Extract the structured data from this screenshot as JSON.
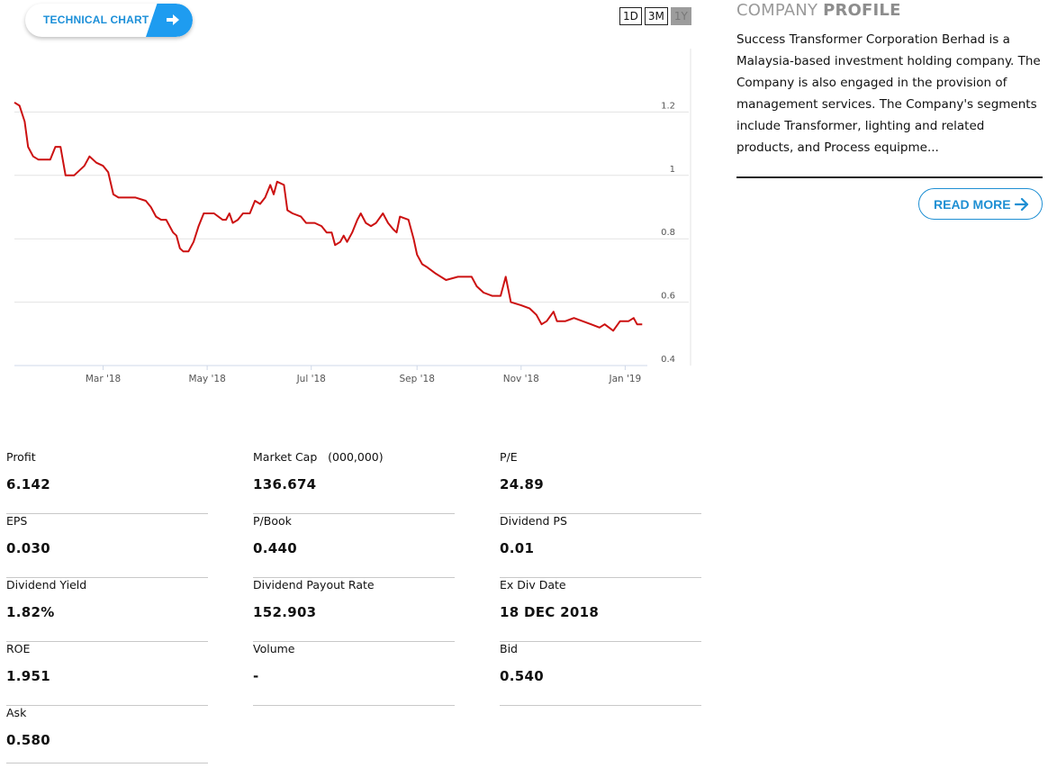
{
  "technical_chart_button": {
    "label": "TECHNICAL CHART",
    "icon": "arrow-right-icon"
  },
  "range_buttons": [
    {
      "label": "1D",
      "active": false
    },
    {
      "label": "3M",
      "active": false
    },
    {
      "label": "1Y",
      "active": true
    }
  ],
  "chart_data": {
    "type": "line",
    "color": "#cc1111",
    "ylim": [
      0.4,
      1.4
    ],
    "yticks": [
      0.4,
      0.6,
      0.8,
      1,
      1.2
    ],
    "ytick_labels": [
      "0.4",
      "0.6",
      "0.8",
      "1",
      "1.2"
    ],
    "xlim": [
      "2018-01-08",
      "2019-01-14"
    ],
    "xticks": [
      {
        "date": "2018-03-01",
        "label": "Mar '18"
      },
      {
        "date": "2018-05-01",
        "label": "May '18"
      },
      {
        "date": "2018-07-01",
        "label": "Jul '18"
      },
      {
        "date": "2018-09-01",
        "label": "Sep '18"
      },
      {
        "date": "2018-11-01",
        "label": "Nov '18"
      },
      {
        "date": "2019-01-01",
        "label": "Jan '19"
      }
    ],
    "series": [
      {
        "points": [
          [
            "2018-01-08",
            1.23
          ],
          [
            "2018-01-11",
            1.22
          ],
          [
            "2018-01-14",
            1.17
          ],
          [
            "2018-01-16",
            1.09
          ],
          [
            "2018-01-19",
            1.06
          ],
          [
            "2018-01-22",
            1.05
          ],
          [
            "2018-01-26",
            1.05
          ],
          [
            "2018-01-29",
            1.05
          ],
          [
            "2018-02-01",
            1.09
          ],
          [
            "2018-02-04",
            1.09
          ],
          [
            "2018-02-07",
            1.0
          ],
          [
            "2018-02-12",
            1.0
          ],
          [
            "2018-02-18",
            1.03
          ],
          [
            "2018-02-21",
            1.06
          ],
          [
            "2018-02-25",
            1.04
          ],
          [
            "2018-03-01",
            1.03
          ],
          [
            "2018-03-04",
            1.01
          ],
          [
            "2018-03-07",
            0.94
          ],
          [
            "2018-03-10",
            0.93
          ],
          [
            "2018-03-14",
            0.93
          ],
          [
            "2018-03-20",
            0.93
          ],
          [
            "2018-03-26",
            0.92
          ],
          [
            "2018-03-29",
            0.9
          ],
          [
            "2018-04-01",
            0.87
          ],
          [
            "2018-04-04",
            0.86
          ],
          [
            "2018-04-07",
            0.86
          ],
          [
            "2018-04-11",
            0.82
          ],
          [
            "2018-04-13",
            0.81
          ],
          [
            "2018-04-15",
            0.77
          ],
          [
            "2018-04-17",
            0.76
          ],
          [
            "2018-04-20",
            0.76
          ],
          [
            "2018-04-23",
            0.79
          ],
          [
            "2018-04-26",
            0.84
          ],
          [
            "2018-04-29",
            0.88
          ],
          [
            "2018-05-05",
            0.88
          ],
          [
            "2018-05-10",
            0.86
          ],
          [
            "2018-05-12",
            0.86
          ],
          [
            "2018-05-14",
            0.88
          ],
          [
            "2018-05-16",
            0.85
          ],
          [
            "2018-05-19",
            0.86
          ],
          [
            "2018-05-22",
            0.88
          ],
          [
            "2018-05-26",
            0.88
          ],
          [
            "2018-05-29",
            0.92
          ],
          [
            "2018-06-01",
            0.91
          ],
          [
            "2018-06-04",
            0.93
          ],
          [
            "2018-06-07",
            0.97
          ],
          [
            "2018-06-09",
            0.94
          ],
          [
            "2018-06-11",
            0.98
          ],
          [
            "2018-06-15",
            0.97
          ],
          [
            "2018-06-17",
            0.89
          ],
          [
            "2018-06-20",
            0.88
          ],
          [
            "2018-06-25",
            0.87
          ],
          [
            "2018-06-28",
            0.85
          ],
          [
            "2018-07-03",
            0.85
          ],
          [
            "2018-07-07",
            0.84
          ],
          [
            "2018-07-10",
            0.82
          ],
          [
            "2018-07-13",
            0.82
          ],
          [
            "2018-07-15",
            0.78
          ],
          [
            "2018-07-18",
            0.79
          ],
          [
            "2018-07-20",
            0.81
          ],
          [
            "2018-07-22",
            0.79
          ],
          [
            "2018-07-25",
            0.82
          ],
          [
            "2018-07-28",
            0.86
          ],
          [
            "2018-07-30",
            0.88
          ],
          [
            "2018-08-02",
            0.85
          ],
          [
            "2018-08-05",
            0.84
          ],
          [
            "2018-08-08",
            0.85
          ],
          [
            "2018-08-12",
            0.88
          ],
          [
            "2018-08-15",
            0.85
          ],
          [
            "2018-08-18",
            0.83
          ],
          [
            "2018-08-20",
            0.82
          ],
          [
            "2018-08-22",
            0.87
          ],
          [
            "2018-08-27",
            0.86
          ],
          [
            "2018-08-30",
            0.8
          ],
          [
            "2018-09-01",
            0.75
          ],
          [
            "2018-09-04",
            0.72
          ],
          [
            "2018-09-07",
            0.71
          ],
          [
            "2018-09-12",
            0.69
          ],
          [
            "2018-09-18",
            0.67
          ],
          [
            "2018-09-25",
            0.68
          ],
          [
            "2018-10-03",
            0.68
          ],
          [
            "2018-10-06",
            0.65
          ],
          [
            "2018-10-10",
            0.63
          ],
          [
            "2018-10-15",
            0.62
          ],
          [
            "2018-10-20",
            0.62
          ],
          [
            "2018-10-23",
            0.68
          ],
          [
            "2018-10-26",
            0.6
          ],
          [
            "2018-11-01",
            0.59
          ],
          [
            "2018-11-06",
            0.58
          ],
          [
            "2018-11-10",
            0.56
          ],
          [
            "2018-11-13",
            0.53
          ],
          [
            "2018-11-16",
            0.54
          ],
          [
            "2018-11-20",
            0.57
          ],
          [
            "2018-11-22",
            0.54
          ],
          [
            "2018-11-27",
            0.54
          ],
          [
            "2018-12-02",
            0.55
          ],
          [
            "2018-12-07",
            0.54
          ],
          [
            "2018-12-12",
            0.53
          ],
          [
            "2018-12-17",
            0.52
          ],
          [
            "2018-12-20",
            0.53
          ],
          [
            "2018-12-25",
            0.51
          ],
          [
            "2018-12-29",
            0.54
          ],
          [
            "2019-01-03",
            0.54
          ],
          [
            "2019-01-06",
            0.55
          ],
          [
            "2019-01-08",
            0.53
          ],
          [
            "2019-01-11",
            0.53
          ]
        ]
      }
    ]
  },
  "profile": {
    "title_light": "COMPANY",
    "title_bold": "PROFILE",
    "text": "Success Transformer Corporation Berhad is a Malaysia-based investment holding company. The Company is also engaged in the provision of management services. The Company's segments include Transformer, lighting and related products, and Process equipme...",
    "read_more": "READ MORE",
    "read_more_icon": "arrow-right-icon"
  },
  "stats": [
    {
      "label": "Profit",
      "value": "6.142"
    },
    {
      "label": "Market Cap   (000,000)",
      "value": "136.674"
    },
    {
      "label": "P/E",
      "value": "24.89"
    },
    {
      "label": "EPS",
      "value": "0.030"
    },
    {
      "label": "P/Book",
      "value": "0.440"
    },
    {
      "label": "Dividend PS",
      "value": "0.01"
    },
    {
      "label": "Dividend Yield",
      "value": "1.82%"
    },
    {
      "label": "Dividend Payout Rate",
      "value": "152.903"
    },
    {
      "label": "Ex Div Date",
      "value": "18 DEC 2018"
    },
    {
      "label": "ROE",
      "value": "1.951"
    },
    {
      "label": "Volume",
      "value": "-"
    },
    {
      "label": "Bid",
      "value": "0.540"
    },
    {
      "label": "Ask",
      "value": "0.580"
    }
  ]
}
